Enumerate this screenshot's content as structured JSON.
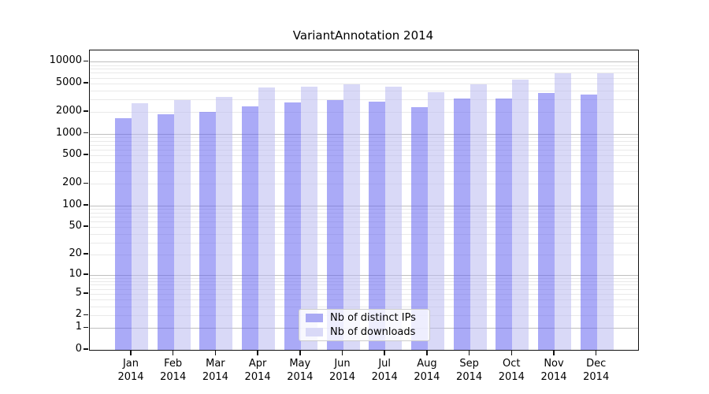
{
  "title": "VariantAnnotation 2014",
  "chart_data": {
    "type": "bar",
    "title": "VariantAnnotation 2014",
    "categories": [
      "Jan",
      "Feb",
      "Mar",
      "Apr",
      "May",
      "Jun",
      "Jul",
      "Aug",
      "Sep",
      "Oct",
      "Nov",
      "Dec"
    ],
    "category_year": "2014",
    "series": [
      {
        "name": "Nb of distinct IPs",
        "color": "#a9a9f4",
        "values": [
          1650,
          1880,
          2000,
          2380,
          2750,
          2920,
          2800,
          2360,
          3080,
          3120,
          3670,
          3490
        ]
      },
      {
        "name": "Nb of downloads",
        "color": "#d9d9f7",
        "values": [
          2650,
          2920,
          3240,
          4350,
          4500,
          4880,
          4530,
          3810,
          4860,
          5660,
          6930,
          6980
        ]
      }
    ],
    "y_scale": "log10(1+x)",
    "y_ticks": [
      10000,
      5000,
      2000,
      1000,
      500,
      200,
      100,
      50,
      20,
      10,
      5,
      2,
      1,
      0
    ],
    "y_axis_top_value": 14350,
    "grid": true,
    "legend_position": "inside-bottom-center",
    "legend_entries": [
      "Nb of distinct IPs",
      "Nb of downloads"
    ]
  },
  "colors": {
    "bar_ips": "#a9a9f4",
    "bar_downloads": "#d9d9f7",
    "grid_major": "#bfbfbf",
    "grid_minor": "#e9e9e9",
    "spine": "#111111",
    "text": "#000000",
    "legend_border": "#cccccc"
  }
}
